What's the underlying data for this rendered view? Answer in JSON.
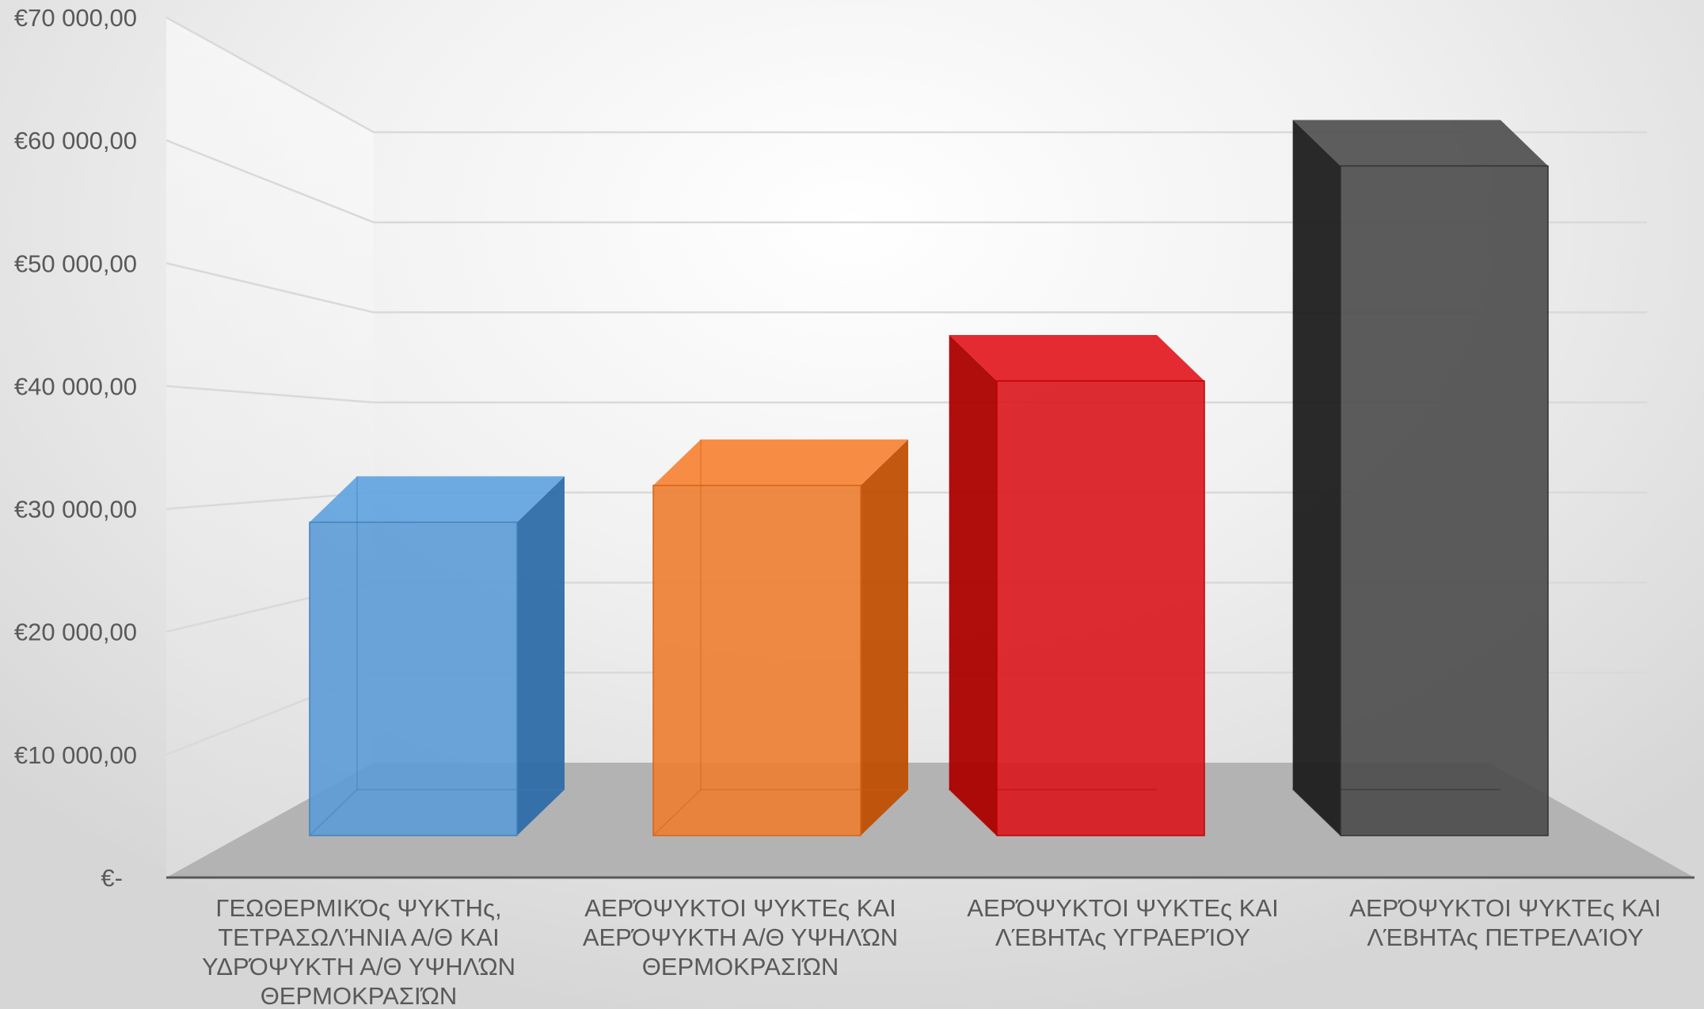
{
  "chart_data": {
    "type": "bar",
    "style": "3d-column",
    "title": "",
    "xlabel": "",
    "ylabel": "",
    "ylim": [
      0,
      70000
    ],
    "grid": true,
    "legend": "none",
    "y_tick_labels": [
      "€-",
      "€10 000,00",
      "€20 000,00",
      "€30 000,00",
      "€40 000,00",
      "€50 000,00",
      "€60 000,00",
      "€70 000,00"
    ],
    "y_tick_values": [
      0,
      10000,
      20000,
      30000,
      40000,
      50000,
      60000,
      70000
    ],
    "categories": [
      [
        "ΓΕΩΘΕΡΜΙΚΌς ΨΥΚΤΗς,",
        "ΤΕΤΡΑΣΩΛΉΝΙΑ Α/Θ ΚΑΙ",
        "ΥΔΡΌΨΥΚΤΗ  Α/Θ ΥΨΗΛΏΝ",
        "ΘΕΡΜΟΚΡΑΣΙΏΝ"
      ],
      [
        "ΑΕΡΌΨΥΚΤΟΙ  ΨΥΚΤΕς  ΚΑΙ",
        "ΑΕΡΌΨΥΚΤΗ  Α/Θ ΥΨΗΛΏΝ",
        "ΘΕΡΜΟΚΡΑΣΙΏΝ"
      ],
      [
        "ΑΕΡΌΨΥΚΤΟΙ  ΨΥΚΤΕς  ΚΑΙ",
        "ΛΈΒΗΤΑς ΥΓΡΑΕΡΊΟΥ"
      ],
      [
        "ΑΕΡΌΨΥΚΤΟΙ  ΨΥΚΤΕς  ΚΑΙ",
        "ΛΈΒΗΤΑς ΠΕΤΡΕΛΑΊΟΥ"
      ]
    ],
    "values": [
      25500,
      28500,
      37000,
      54500
    ],
    "bar_colors": [
      "#5b9bd5",
      "#ed7d31",
      "#d9161c",
      "#4a4a4a"
    ],
    "colors": {
      "floor": "#b3b3b3",
      "gridline": "#d9d9d9",
      "axis_line": "#595959",
      "text": "#595959"
    }
  }
}
